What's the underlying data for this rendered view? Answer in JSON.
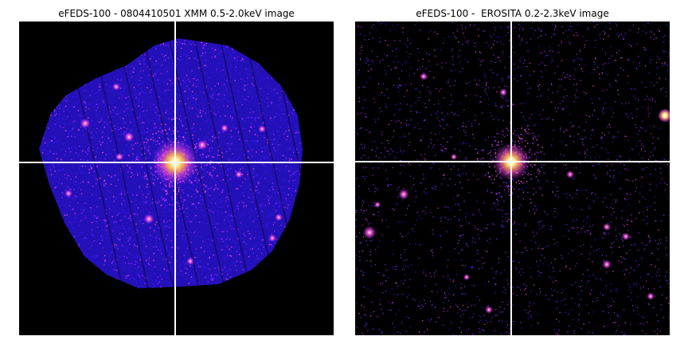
{
  "panels": {
    "left": {
      "title": "eFEDS-100 - 0804410501 XMM 0.5-2.0keV image"
    },
    "right": {
      "title": "eFEDS-100 -  EROSITA 0.2-2.3keV image"
    }
  },
  "colors": {
    "background": "#000000",
    "crosshair": "#ffffff",
    "photon_low": "#3a1aff",
    "photon_mid": "#9b2bff",
    "photon_high": "#ff4fd8",
    "source_core": "#fff4a0"
  }
}
